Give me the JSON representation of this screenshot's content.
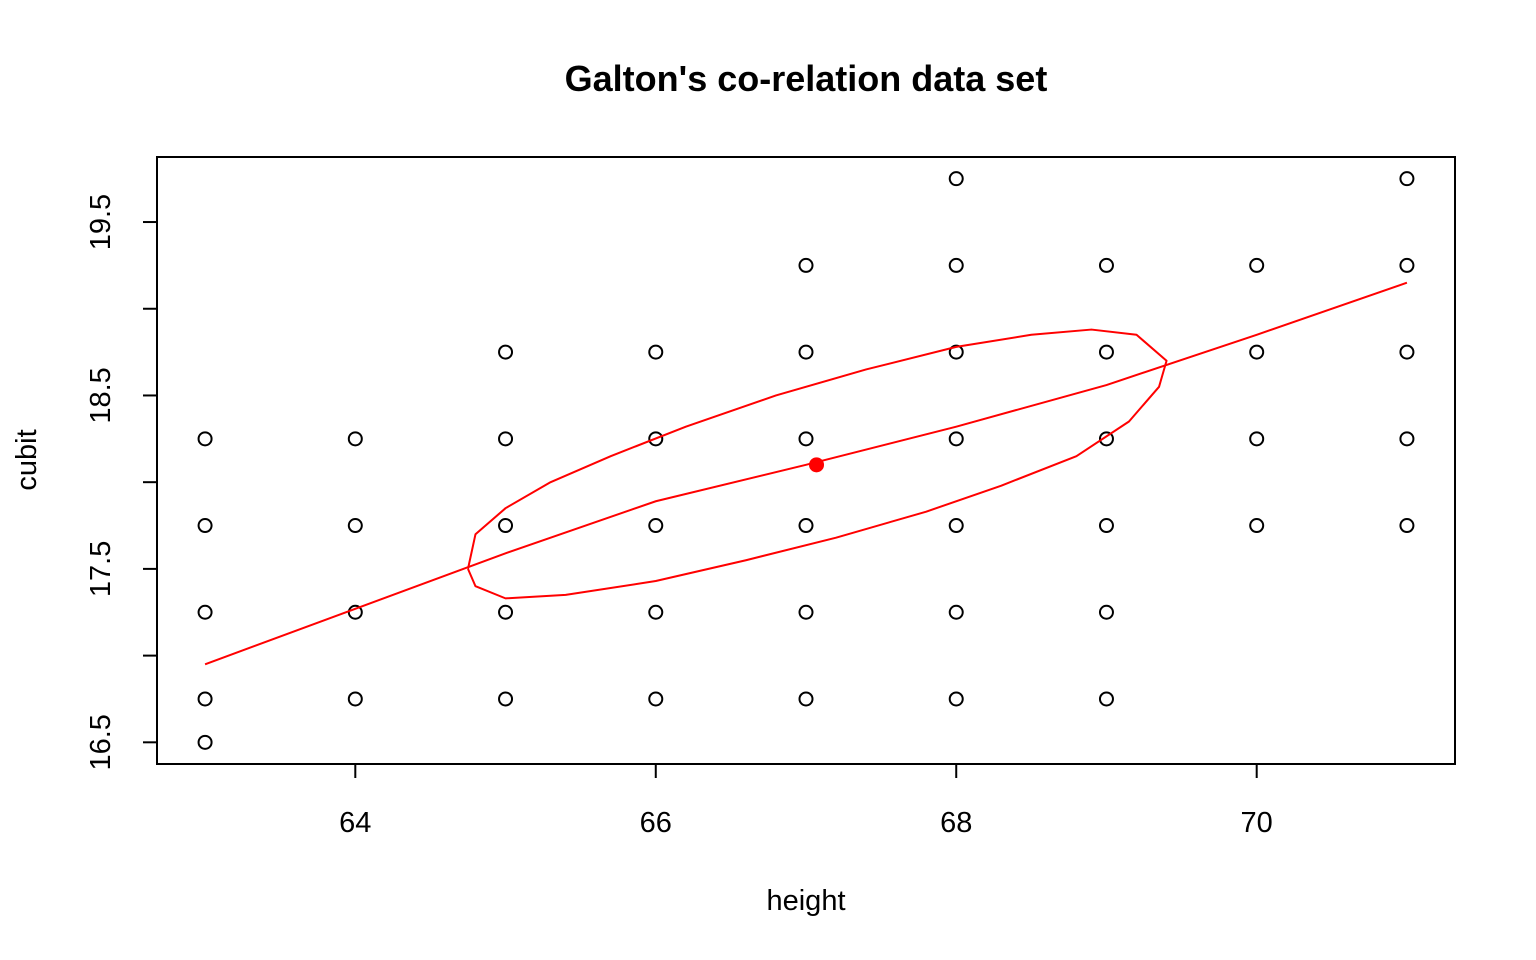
{
  "chart_data": {
    "type": "scatter",
    "title": "Galton's co-relation data set",
    "xlabel": "height",
    "ylabel": "cubit",
    "xlim": [
      62.68,
      71.32
    ],
    "ylim": [
      16.375,
      19.875
    ],
    "x_ticks": [
      64,
      66,
      68,
      70
    ],
    "y_ticks": [
      16.5,
      17.0,
      17.5,
      18.0,
      18.5,
      19.0,
      19.5
    ],
    "y_tick_labels": [
      "16.5",
      "",
      "17.5",
      "",
      "18.5",
      "",
      "19.5"
    ],
    "grid": false,
    "legend": "none",
    "points": [
      [
        63,
        18.25
      ],
      [
        63,
        17.75
      ],
      [
        63,
        17.25
      ],
      [
        63,
        16.75
      ],
      [
        63,
        16.5
      ],
      [
        64,
        18.25
      ],
      [
        64,
        17.75
      ],
      [
        64,
        17.25
      ],
      [
        64,
        16.75
      ],
      [
        65,
        18.75
      ],
      [
        65,
        18.25
      ],
      [
        65,
        17.75
      ],
      [
        65,
        17.25
      ],
      [
        65,
        16.75
      ],
      [
        66,
        18.75
      ],
      [
        66,
        18.25
      ],
      [
        66,
        17.75
      ],
      [
        66,
        17.25
      ],
      [
        66,
        16.75
      ],
      [
        67,
        19.25
      ],
      [
        67,
        18.75
      ],
      [
        67,
        18.25
      ],
      [
        67,
        17.75
      ],
      [
        67,
        17.25
      ],
      [
        67,
        16.75
      ],
      [
        68,
        19.75
      ],
      [
        68,
        19.25
      ],
      [
        68,
        18.75
      ],
      [
        68,
        18.25
      ],
      [
        68,
        17.75
      ],
      [
        68,
        17.25
      ],
      [
        68,
        16.75
      ],
      [
        69,
        19.25
      ],
      [
        69,
        18.75
      ],
      [
        69,
        18.25
      ],
      [
        69,
        17.75
      ],
      [
        69,
        17.25
      ],
      [
        69,
        16.75
      ],
      [
        70,
        19.25
      ],
      [
        70,
        18.75
      ],
      [
        70,
        18.25
      ],
      [
        70,
        17.75
      ],
      [
        71,
        19.75
      ],
      [
        71,
        19.25
      ],
      [
        71,
        18.75
      ],
      [
        71,
        18.25
      ],
      [
        71,
        17.75
      ]
    ],
    "overlay": {
      "color": "#ff0000",
      "mean_point": [
        67.07,
        18.1
      ],
      "fit_line": [
        [
          63,
          16.95
        ],
        [
          64,
          17.27
        ],
        [
          65,
          17.59
        ],
        [
          66,
          17.89
        ],
        [
          67,
          18.1
        ],
        [
          68,
          18.32
        ],
        [
          69,
          18.56
        ],
        [
          70,
          18.85
        ],
        [
          71,
          19.15
        ]
      ],
      "ellipse": [
        [
          64.75,
          17.5
        ],
        [
          64.8,
          17.7
        ],
        [
          65.0,
          17.85
        ],
        [
          65.3,
          18.0
        ],
        [
          65.7,
          18.15
        ],
        [
          66.2,
          18.32
        ],
        [
          66.8,
          18.5
        ],
        [
          67.4,
          18.65
        ],
        [
          68.0,
          18.78
        ],
        [
          68.5,
          18.85
        ],
        [
          68.9,
          18.88
        ],
        [
          69.2,
          18.85
        ],
        [
          69.4,
          18.7
        ],
        [
          69.35,
          18.55
        ],
        [
          69.15,
          18.35
        ],
        [
          68.8,
          18.15
        ],
        [
          68.3,
          17.98
        ],
        [
          67.8,
          17.83
        ],
        [
          67.2,
          17.68
        ],
        [
          66.6,
          17.55
        ],
        [
          66.0,
          17.43
        ],
        [
          65.4,
          17.35
        ],
        [
          65.0,
          17.33
        ],
        [
          64.8,
          17.4
        ],
        [
          64.75,
          17.5
        ]
      ]
    }
  }
}
